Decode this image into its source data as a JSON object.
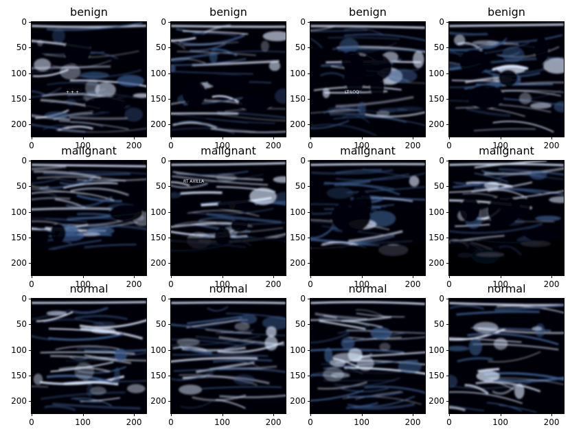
{
  "figure": {
    "axis": {
      "x_ticks": [
        "0",
        "100",
        "200"
      ],
      "y_ticks": [
        "0",
        "50",
        "100",
        "150",
        "200"
      ],
      "xlim": [
        0,
        224
      ],
      "ylim": [
        224,
        0
      ]
    },
    "colormap": {
      "dark": "#000008",
      "mid": "#3a5d8f",
      "light": "#dce9ff"
    },
    "rows": [
      {
        "panels": [
          {
            "title": "benign",
            "overlay": "+ + +"
          },
          {
            "title": "benign"
          },
          {
            "title": "benign",
            "overlay": "LT LOQ"
          },
          {
            "title": "benign"
          }
        ]
      },
      {
        "panels": [
          {
            "title": "malignant"
          },
          {
            "title": "malignant",
            "overlay": "RT AXILLA"
          },
          {
            "title": "malignant"
          },
          {
            "title": "malignant"
          }
        ]
      },
      {
        "panels": [
          {
            "title": "normal"
          },
          {
            "title": "normal"
          },
          {
            "title": "normal"
          },
          {
            "title": "normal"
          }
        ]
      }
    ]
  }
}
